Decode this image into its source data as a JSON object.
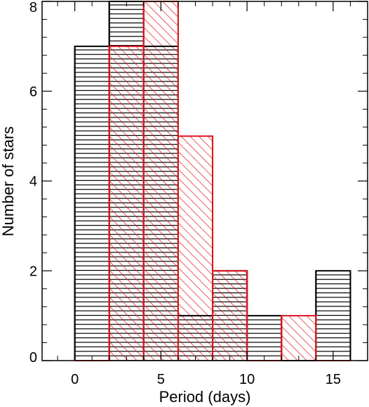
{
  "chart_data": {
    "type": "bar",
    "title": "",
    "xlabel": "Period (days)",
    "ylabel": "Number of stars",
    "xlim": [
      -1.9,
      17
    ],
    "ylim": [
      0,
      8
    ],
    "xticks": [
      0,
      5,
      10,
      15
    ],
    "yticks": [
      0,
      2,
      4,
      6,
      8
    ],
    "bin_width": 2,
    "grid": false,
    "series": [
      {
        "color": "#000000",
        "hatch": "horizontal",
        "bins": [
          {
            "x0": 0,
            "x1": 2,
            "count": 7
          },
          {
            "x0": 2,
            "x1": 4,
            "count": 8
          },
          {
            "x0": 4,
            "x1": 6,
            "count": 7
          },
          {
            "x0": 6,
            "x1": 8,
            "count": 1
          },
          {
            "x0": 8,
            "x1": 10,
            "count": 2
          },
          {
            "x0": 10,
            "x1": 12,
            "count": 1
          },
          {
            "x0": 12,
            "x1": 14,
            "count": 0
          },
          {
            "x0": 14,
            "x1": 16,
            "count": 2
          }
        ]
      },
      {
        "color": "#e0141e",
        "hatch": "diagonal",
        "bins": [
          {
            "x0": 0,
            "x1": 2,
            "count": 0
          },
          {
            "x0": 2,
            "x1": 4,
            "count": 7
          },
          {
            "x0": 4,
            "x1": 6,
            "count": 8
          },
          {
            "x0": 6,
            "x1": 8,
            "count": 5
          },
          {
            "x0": 8,
            "x1": 10,
            "count": 2
          },
          {
            "x0": 10,
            "x1": 12,
            "count": 0
          },
          {
            "x0": 12,
            "x1": 14,
            "count": 1
          },
          {
            "x0": 14,
            "x1": 16,
            "count": 0
          }
        ]
      }
    ]
  }
}
